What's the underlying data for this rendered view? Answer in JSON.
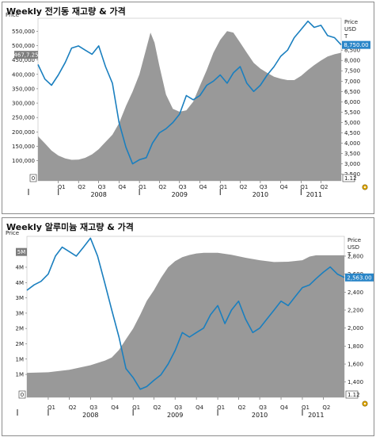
{
  "chart_data": [
    {
      "type": "area",
      "title": "Weekly 전기동 재고량 & 가격",
      "left_axis_label": "Price",
      "right_axis_label": [
        "Price",
        "USD",
        "T"
      ],
      "left_ticks": [
        "550,000",
        "500,000",
        "450,000",
        "400,000",
        "350,000",
        "300,000",
        "250,000",
        "200,000",
        "150,000",
        "100,000"
      ],
      "left_tick_values": [
        550000,
        500000,
        450000,
        400000,
        350000,
        300000,
        250000,
        200000,
        150000,
        100000
      ],
      "left_range": [
        30000,
        595000
      ],
      "right_ticks": [
        "8,500",
        "8,000",
        "7,500",
        "7,000",
        "6,500",
        "6,000",
        "5,500",
        "5,000",
        "4,500",
        "4,000",
        "3,500",
        "3,000",
        "2,500"
      ],
      "right_tick_values": [
        8500,
        8000,
        7500,
        7000,
        6500,
        6000,
        5500,
        5000,
        4500,
        4000,
        3500,
        3000,
        2500
      ],
      "right_range": [
        2180,
        10040
      ],
      "left_bottom_label": "0",
      "right_bottom_label": "1.12",
      "left_badge": "467,7.25",
      "right_badge": "8,750.00",
      "x_start": "2007-10-01",
      "x_end": "2011-07-01",
      "quarter_ticks": [
        {
          "date": "2008-01-01",
          "label": "Q1"
        },
        {
          "date": "2008-04-01",
          "label": "Q2"
        },
        {
          "date": "2008-07-01",
          "label": "Q3"
        },
        {
          "date": "2008-10-01",
          "label": "Q4"
        },
        {
          "date": "2009-01-01",
          "label": "Q1"
        },
        {
          "date": "2009-04-01",
          "label": "Q2"
        },
        {
          "date": "2009-07-01",
          "label": "Q3"
        },
        {
          "date": "2009-10-01",
          "label": "Q4"
        },
        {
          "date": "2010-01-01",
          "label": "Q1"
        },
        {
          "date": "2010-04-01",
          "label": "Q2"
        },
        {
          "date": "2010-07-01",
          "label": "Q3"
        },
        {
          "date": "2010-10-01",
          "label": "Q4"
        },
        {
          "date": "2011-01-01",
          "label": "Q1"
        },
        {
          "date": "2011-04-01",
          "label": "Q2"
        }
      ],
      "years": [
        {
          "date": "2008-07-01",
          "label": "2008"
        },
        {
          "date": "2009-07-01",
          "label": "2009"
        },
        {
          "date": "2010-07-01",
          "label": "2010"
        },
        {
          "date": "2011-03-01",
          "label": "2011"
        }
      ],
      "year_marks": [
        "2008-01-01",
        "2009-01-01",
        "2010-01-01",
        "2011-01-01"
      ],
      "inventory": {
        "axis": "left",
        "color": "#999999",
        "points": [
          [
            "2007-10-01",
            185000
          ],
          [
            "2007-11-01",
            160000
          ],
          [
            "2007-12-01",
            135000
          ],
          [
            "2008-01-01",
            118000
          ],
          [
            "2008-02-01",
            108000
          ],
          [
            "2008-03-01",
            103000
          ],
          [
            "2008-04-01",
            104000
          ],
          [
            "2008-05-01",
            110000
          ],
          [
            "2008-06-01",
            122000
          ],
          [
            "2008-07-01",
            140000
          ],
          [
            "2008-08-01",
            165000
          ],
          [
            "2008-09-01",
            190000
          ],
          [
            "2008-10-01",
            230000
          ],
          [
            "2008-11-01",
            290000
          ],
          [
            "2008-12-01",
            340000
          ],
          [
            "2009-01-01",
            400000
          ],
          [
            "2009-02-01",
            490000
          ],
          [
            "2009-02-20",
            545000
          ],
          [
            "2009-03-10",
            510000
          ],
          [
            "2009-04-01",
            430000
          ],
          [
            "2009-05-01",
            330000
          ],
          [
            "2009-06-01",
            280000
          ],
          [
            "2009-07-01",
            270000
          ],
          [
            "2009-08-01",
            275000
          ],
          [
            "2009-09-01",
            305000
          ],
          [
            "2009-10-01",
            360000
          ],
          [
            "2009-11-01",
            415000
          ],
          [
            "2009-12-01",
            475000
          ],
          [
            "2010-01-01",
            520000
          ],
          [
            "2010-02-01",
            550000
          ],
          [
            "2010-03-01",
            545000
          ],
          [
            "2010-04-01",
            510000
          ],
          [
            "2010-05-01",
            475000
          ],
          [
            "2010-06-01",
            440000
          ],
          [
            "2010-07-01",
            420000
          ],
          [
            "2010-08-01",
            405000
          ],
          [
            "2010-09-01",
            392000
          ],
          [
            "2010-10-01",
            385000
          ],
          [
            "2010-11-01",
            380000
          ],
          [
            "2010-12-01",
            380000
          ],
          [
            "2011-01-01",
            395000
          ],
          [
            "2011-02-01",
            415000
          ],
          [
            "2011-03-01",
            432000
          ],
          [
            "2011-04-01",
            448000
          ],
          [
            "2011-05-01",
            462000
          ],
          [
            "2011-06-01",
            470000
          ],
          [
            "2011-07-01",
            475000
          ]
        ]
      },
      "price": {
        "axis": "right",
        "color": "#1a7fbf",
        "points": [
          [
            "2007-10-01",
            7800
          ],
          [
            "2007-11-01",
            7100
          ],
          [
            "2007-12-01",
            6800
          ],
          [
            "2008-01-01",
            7300
          ],
          [
            "2008-02-01",
            7900
          ],
          [
            "2008-03-01",
            8600
          ],
          [
            "2008-04-01",
            8700
          ],
          [
            "2008-05-01",
            8500
          ],
          [
            "2008-06-01",
            8300
          ],
          [
            "2008-07-01",
            8700
          ],
          [
            "2008-08-01",
            7700
          ],
          [
            "2008-09-01",
            6900
          ],
          [
            "2008-10-01",
            5000
          ],
          [
            "2008-11-01",
            3800
          ],
          [
            "2008-12-01",
            3000
          ],
          [
            "2009-01-01",
            3200
          ],
          [
            "2009-02-01",
            3300
          ],
          [
            "2009-03-01",
            4000
          ],
          [
            "2009-04-01",
            4500
          ],
          [
            "2009-05-01",
            4700
          ],
          [
            "2009-06-01",
            5000
          ],
          [
            "2009-07-01",
            5400
          ],
          [
            "2009-08-01",
            6300
          ],
          [
            "2009-09-01",
            6100
          ],
          [
            "2009-10-01",
            6300
          ],
          [
            "2009-11-01",
            6800
          ],
          [
            "2009-12-01",
            7000
          ],
          [
            "2010-01-01",
            7300
          ],
          [
            "2010-02-01",
            6900
          ],
          [
            "2010-03-01",
            7400
          ],
          [
            "2010-04-01",
            7700
          ],
          [
            "2010-05-01",
            6900
          ],
          [
            "2010-06-01",
            6500
          ],
          [
            "2010-07-01",
            6800
          ],
          [
            "2010-08-01",
            7300
          ],
          [
            "2010-09-01",
            7700
          ],
          [
            "2010-10-01",
            8200
          ],
          [
            "2010-11-01",
            8500
          ],
          [
            "2010-12-01",
            9100
          ],
          [
            "2011-01-01",
            9500
          ],
          [
            "2011-02-01",
            9900
          ],
          [
            "2011-03-01",
            9600
          ],
          [
            "2011-04-01",
            9700
          ],
          [
            "2011-05-01",
            9200
          ],
          [
            "2011-06-01",
            9100
          ],
          [
            "2011-07-01",
            8750
          ]
        ]
      }
    },
    {
      "type": "area",
      "title": "Weekly 알루미늄 재고량 & 가격",
      "left_axis_label": "Price",
      "right_axis_label": [
        "Price",
        "USD",
        "T"
      ],
      "left_ticks": [
        "5M",
        "4M",
        "4M",
        "3M",
        "3M",
        "2M",
        "2M",
        "1M",
        "1M"
      ],
      "left_tick_values": [
        4750000,
        4250000,
        3750000,
        3250000,
        2750000,
        2250000,
        1750000,
        1250000,
        750000
      ],
      "left_range": [
        0,
        5260000
      ],
      "right_ticks": [
        "2,800",
        "2,600",
        "2,400",
        "2,200",
        "2,000",
        "1,800",
        "1,600",
        "1,400"
      ],
      "right_tick_values": [
        2800,
        2600,
        2400,
        2200,
        2000,
        1800,
        1600,
        1400
      ],
      "right_range": [
        1230,
        3020
      ],
      "left_bottom_label": "0",
      "right_bottom_label": "1.12",
      "left_badge": "5M",
      "right_badge": "2,563.00",
      "x_start": "2007-10-01",
      "x_end": "2011-07-01",
      "quarter_ticks": [
        {
          "date": "2008-01-01",
          "label": "Q1"
        },
        {
          "date": "2008-04-01",
          "label": "Q2"
        },
        {
          "date": "2008-07-01",
          "label": "Q3"
        },
        {
          "date": "2008-10-01",
          "label": "Q4"
        },
        {
          "date": "2009-01-01",
          "label": "Q1"
        },
        {
          "date": "2009-04-01",
          "label": "Q2"
        },
        {
          "date": "2009-07-01",
          "label": "Q3"
        },
        {
          "date": "2009-10-01",
          "label": "Q4"
        },
        {
          "date": "2010-01-01",
          "label": "Q1"
        },
        {
          "date": "2010-04-01",
          "label": "Q2"
        },
        {
          "date": "2010-07-01",
          "label": "Q3"
        },
        {
          "date": "2010-10-01",
          "label": "Q4"
        },
        {
          "date": "2011-01-01",
          "label": "Q1"
        },
        {
          "date": "2011-04-01",
          "label": "Q2"
        }
      ],
      "years": [
        {
          "date": "2008-07-01",
          "label": "2008"
        },
        {
          "date": "2009-07-01",
          "label": "2009"
        },
        {
          "date": "2010-07-01",
          "label": "2010"
        },
        {
          "date": "2011-03-01",
          "label": "2011"
        }
      ],
      "year_marks": [
        "2008-01-01",
        "2009-01-01",
        "2010-01-01",
        "2011-01-01"
      ],
      "inventory": {
        "axis": "left",
        "color": "#999999",
        "points": [
          [
            "2007-10-01",
            800000
          ],
          [
            "2008-01-01",
            820000
          ],
          [
            "2008-04-01",
            900000
          ],
          [
            "2008-07-01",
            1050000
          ],
          [
            "2008-09-01",
            1200000
          ],
          [
            "2008-10-01",
            1300000
          ],
          [
            "2008-11-01",
            1550000
          ],
          [
            "2008-12-01",
            1900000
          ],
          [
            "2009-01-01",
            2250000
          ],
          [
            "2009-02-01",
            2700000
          ],
          [
            "2009-03-01",
            3150000
          ],
          [
            "2009-04-01",
            3500000
          ],
          [
            "2009-05-01",
            3900000
          ],
          [
            "2009-06-01",
            4250000
          ],
          [
            "2009-07-01",
            4450000
          ],
          [
            "2009-08-01",
            4580000
          ],
          [
            "2009-09-01",
            4650000
          ],
          [
            "2009-10-01",
            4700000
          ],
          [
            "2009-11-01",
            4720000
          ],
          [
            "2010-01-01",
            4720000
          ],
          [
            "2010-03-01",
            4660000
          ],
          [
            "2010-05-01",
            4560000
          ],
          [
            "2010-07-01",
            4480000
          ],
          [
            "2010-09-01",
            4420000
          ],
          [
            "2010-11-01",
            4430000
          ],
          [
            "2011-01-01",
            4480000
          ],
          [
            "2011-02-01",
            4600000
          ],
          [
            "2011-03-01",
            4640000
          ],
          [
            "2011-05-01",
            4640000
          ],
          [
            "2011-07-01",
            4640000
          ]
        ]
      },
      "price": {
        "axis": "right",
        "color": "#1a7fbf",
        "points": [
          [
            "2007-10-01",
            2420
          ],
          [
            "2007-11-01",
            2480
          ],
          [
            "2007-12-01",
            2520
          ],
          [
            "2008-01-01",
            2600
          ],
          [
            "2008-02-01",
            2800
          ],
          [
            "2008-03-01",
            2900
          ],
          [
            "2008-04-01",
            2850
          ],
          [
            "2008-05-01",
            2800
          ],
          [
            "2008-06-01",
            2900
          ],
          [
            "2008-07-01",
            3000
          ],
          [
            "2008-08-01",
            2800
          ],
          [
            "2008-09-01",
            2500
          ],
          [
            "2008-10-01",
            2200
          ],
          [
            "2008-11-01",
            1900
          ],
          [
            "2008-12-01",
            1550
          ],
          [
            "2009-01-01",
            1450
          ],
          [
            "2009-02-01",
            1320
          ],
          [
            "2009-03-01",
            1350
          ],
          [
            "2009-04-01",
            1420
          ],
          [
            "2009-05-01",
            1480
          ],
          [
            "2009-06-01",
            1600
          ],
          [
            "2009-07-01",
            1750
          ],
          [
            "2009-08-01",
            1950
          ],
          [
            "2009-09-01",
            1900
          ],
          [
            "2009-10-01",
            1950
          ],
          [
            "2009-11-01",
            2000
          ],
          [
            "2009-12-01",
            2150
          ],
          [
            "2010-01-01",
            2250
          ],
          [
            "2010-02-01",
            2050
          ],
          [
            "2010-03-01",
            2200
          ],
          [
            "2010-04-01",
            2300
          ],
          [
            "2010-05-01",
            2100
          ],
          [
            "2010-06-01",
            1950
          ],
          [
            "2010-07-01",
            2000
          ],
          [
            "2010-08-01",
            2100
          ],
          [
            "2010-09-01",
            2200
          ],
          [
            "2010-10-01",
            2300
          ],
          [
            "2010-11-01",
            2250
          ],
          [
            "2010-12-01",
            2350
          ],
          [
            "2011-01-01",
            2450
          ],
          [
            "2011-02-01",
            2480
          ],
          [
            "2011-03-01",
            2550
          ],
          [
            "2011-04-01",
            2620
          ],
          [
            "2011-05-01",
            2680
          ],
          [
            "2011-06-01",
            2600
          ],
          [
            "2011-07-01",
            2563
          ]
        ]
      }
    }
  ]
}
